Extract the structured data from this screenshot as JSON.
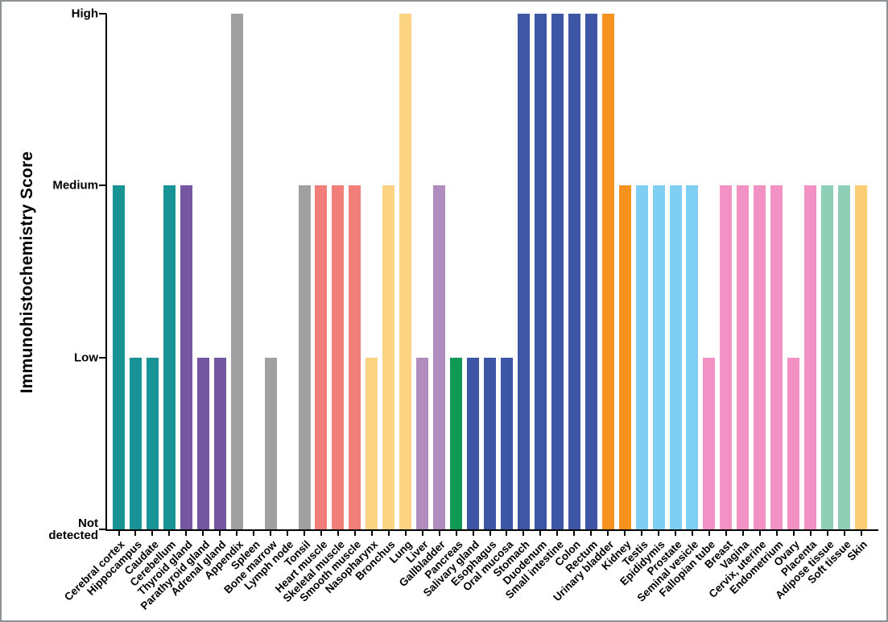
{
  "figure": {
    "background": "#FFFFFF",
    "border_color": "#8C9196"
  },
  "chart_data": {
    "type": "bar",
    "title": "",
    "xlabel": "",
    "ylabel": "Immunohistochemistry Score",
    "ylim": [
      0,
      3
    ],
    "grid": false,
    "legend": false,
    "score_scale": {
      "0": "Not detected",
      "1": "Low",
      "2": "Medium",
      "3": "High"
    },
    "yticks": [
      {
        "value": 3,
        "label": "High"
      },
      {
        "value": 2,
        "label": "Medium"
      },
      {
        "value": 1,
        "label": "Low"
      },
      {
        "value": 0,
        "label": "Not detected"
      }
    ],
    "bars": [
      {
        "category": "Cerebral cortex",
        "value": 2,
        "score": "Medium",
        "color": "#189496"
      },
      {
        "category": "Hippocampus",
        "value": 1,
        "score": "Low",
        "color": "#189496"
      },
      {
        "category": "Caudate",
        "value": 1,
        "score": "Low",
        "color": "#189496"
      },
      {
        "category": "Cerebellum",
        "value": 2,
        "score": "Medium",
        "color": "#189496"
      },
      {
        "category": "Thyroid gland",
        "value": 2,
        "score": "Medium",
        "color": "#7557A1"
      },
      {
        "category": "Parathyroid gland",
        "value": 1,
        "score": "Low",
        "color": "#7557A1"
      },
      {
        "category": "Adrenal gland",
        "value": 1,
        "score": "Low",
        "color": "#7557A1"
      },
      {
        "category": "Appendix",
        "value": 3,
        "score": "High",
        "color": "#A0A0A0"
      },
      {
        "category": "Spleen",
        "value": 0,
        "score": "Not detected",
        "color": "#A0A0A0"
      },
      {
        "category": "Bone marrow",
        "value": 1,
        "score": "Low",
        "color": "#A0A0A0"
      },
      {
        "category": "Lymph node",
        "value": 0,
        "score": "Not detected",
        "color": "#A0A0A0"
      },
      {
        "category": "Tonsil",
        "value": 2,
        "score": "Medium",
        "color": "#A0A0A0"
      },
      {
        "category": "Heart muscle",
        "value": 2,
        "score": "Medium",
        "color": "#F17E79"
      },
      {
        "category": "Skeletal muscle",
        "value": 2,
        "score": "Medium",
        "color": "#F17E79"
      },
      {
        "category": "Smooth muscle",
        "value": 2,
        "score": "Medium",
        "color": "#F17E79"
      },
      {
        "category": "Nasopharynx",
        "value": 1,
        "score": "Low",
        "color": "#FBD383"
      },
      {
        "category": "Bronchus",
        "value": 2,
        "score": "Medium",
        "color": "#FBD383"
      },
      {
        "category": "Lung",
        "value": 3,
        "score": "High",
        "color": "#FBD383"
      },
      {
        "category": "Liver",
        "value": 1,
        "score": "Low",
        "color": "#B08DBE"
      },
      {
        "category": "Gallbladder",
        "value": 2,
        "score": "Medium",
        "color": "#B08DBE"
      },
      {
        "category": "Pancreas",
        "value": 1,
        "score": "Low",
        "color": "#109955"
      },
      {
        "category": "Salivary gland",
        "value": 1,
        "score": "Low",
        "color": "#3D56A6"
      },
      {
        "category": "Esophagus",
        "value": 1,
        "score": "Low",
        "color": "#3D56A6"
      },
      {
        "category": "Oral mucosa",
        "value": 1,
        "score": "Low",
        "color": "#3D56A6"
      },
      {
        "category": "Stomach",
        "value": 3,
        "score": "High",
        "color": "#3D56A6"
      },
      {
        "category": "Duodenum",
        "value": 3,
        "score": "High",
        "color": "#3D56A6"
      },
      {
        "category": "Small intestine",
        "value": 3,
        "score": "High",
        "color": "#3D56A6"
      },
      {
        "category": "Colon",
        "value": 3,
        "score": "High",
        "color": "#3D56A6"
      },
      {
        "category": "Rectum",
        "value": 3,
        "score": "High",
        "color": "#3D56A6"
      },
      {
        "category": "Urinary bladder",
        "value": 3,
        "score": "High",
        "color": "#F6921E"
      },
      {
        "category": "Kidney",
        "value": 2,
        "score": "Medium",
        "color": "#F6921E"
      },
      {
        "category": "Testis",
        "value": 2,
        "score": "Medium",
        "color": "#7FCEF4"
      },
      {
        "category": "Epididymis",
        "value": 2,
        "score": "Medium",
        "color": "#7FCEF4"
      },
      {
        "category": "Prostate",
        "value": 2,
        "score": "Medium",
        "color": "#7FCEF4"
      },
      {
        "category": "Seminal vesicle",
        "value": 2,
        "score": "Medium",
        "color": "#7FCEF4"
      },
      {
        "category": "Fallopian tube",
        "value": 1,
        "score": "Low",
        "color": "#F291C3"
      },
      {
        "category": "Breast",
        "value": 2,
        "score": "Medium",
        "color": "#F291C3"
      },
      {
        "category": "Vagina",
        "value": 2,
        "score": "Medium",
        "color": "#F291C3"
      },
      {
        "category": "Cervix, uterine",
        "value": 2,
        "score": "Medium",
        "color": "#F291C3"
      },
      {
        "category": "Endometrium",
        "value": 2,
        "score": "Medium",
        "color": "#F291C3"
      },
      {
        "category": "Ovary",
        "value": 1,
        "score": "Low",
        "color": "#F291C3"
      },
      {
        "category": "Placenta",
        "value": 2,
        "score": "Medium",
        "color": "#F291C3"
      },
      {
        "category": "Adipose tissue",
        "value": 2,
        "score": "Medium",
        "color": "#8FCFB7"
      },
      {
        "category": "Soft tissue",
        "value": 2,
        "score": "Medium",
        "color": "#8FCFB7"
      },
      {
        "category": "Skin",
        "value": 2,
        "score": "Medium",
        "color": "#FBCE75"
      }
    ]
  }
}
